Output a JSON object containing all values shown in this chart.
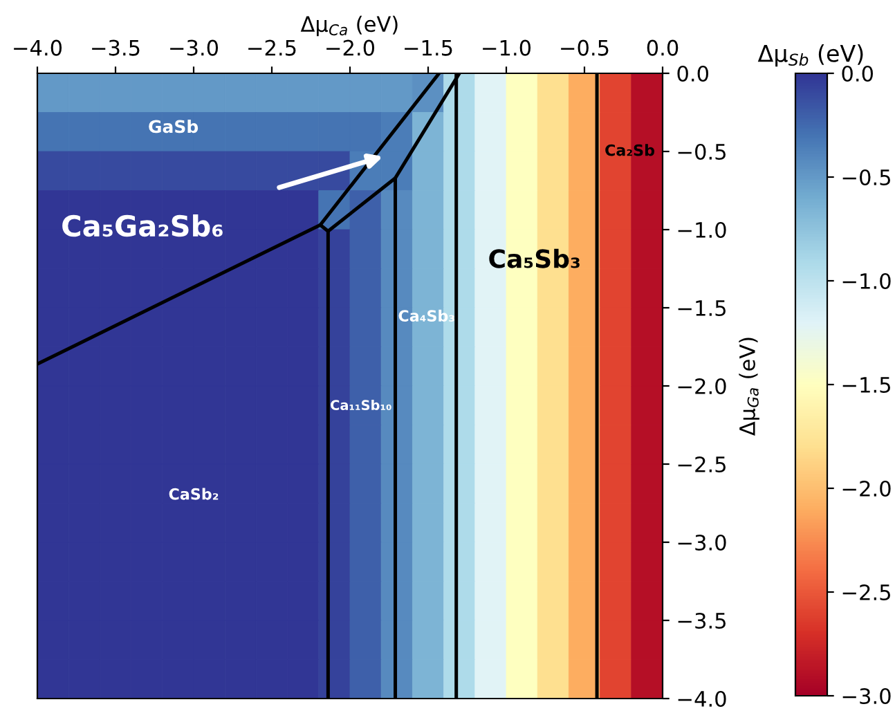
{
  "chart_data": {
    "type": "heatmap",
    "xlabel": "Δμ$_{Ca}$ (eV)",
    "ylabel": "Δμ$_{Ga}$ (eV)",
    "clabel": "Δμ$_{Sb}$ (eV)",
    "cells": [
      [
        -0.5,
        -0.5,
        -0.5,
        -0.5,
        -0.5,
        -0.5,
        -0.5,
        -0.5,
        -0.5,
        -0.5,
        -0.5,
        -0.5,
        -0.45,
        -0.92,
        -1.21,
        -1.5,
        -1.8,
        -2.1,
        -2.6,
        -2.9
      ],
      [
        -0.3,
        -0.3,
        -0.3,
        -0.3,
        -0.3,
        -0.3,
        -0.3,
        -0.3,
        -0.3,
        -0.3,
        -0.3,
        -0.35,
        -0.65,
        -0.92,
        -1.21,
        -1.5,
        -1.8,
        -2.1,
        -2.6,
        -2.9
      ],
      [
        -0.1,
        -0.1,
        -0.1,
        -0.1,
        -0.1,
        -0.1,
        -0.1,
        -0.1,
        -0.1,
        -0.1,
        -0.35,
        -0.35,
        -0.65,
        -0.92,
        -1.21,
        -1.5,
        -1.8,
        -2.1,
        -2.6,
        -2.9
      ],
      [
        0.0,
        0.0,
        0.0,
        0.0,
        0.0,
        0.0,
        0.0,
        0.0,
        0.0,
        -0.3,
        -0.2,
        -0.42,
        -0.65,
        -0.92,
        -1.21,
        -1.5,
        -1.8,
        -2.1,
        -2.6,
        -2.9
      ],
      [
        0.0,
        0.0,
        0.0,
        0.0,
        0.0,
        0.0,
        0.0,
        0.0,
        0.0,
        -0.06,
        -0.2,
        -0.42,
        -0.65,
        -0.92,
        -1.21,
        -1.5,
        -1.8,
        -2.1,
        -2.6,
        -2.9
      ],
      [
        0.0,
        0.0,
        0.0,
        0.0,
        0.0,
        0.0,
        0.0,
        0.0,
        0.0,
        -0.06,
        -0.2,
        -0.42,
        -0.65,
        -0.92,
        -1.21,
        -1.5,
        -1.8,
        -2.1,
        -2.6,
        -2.9
      ],
      [
        0.0,
        0.0,
        0.0,
        0.0,
        0.0,
        0.0,
        0.0,
        0.0,
        0.0,
        -0.06,
        -0.2,
        -0.42,
        -0.65,
        -0.92,
        -1.21,
        -1.5,
        -1.8,
        -2.1,
        -2.6,
        -2.9
      ],
      [
        0.0,
        0.0,
        0.0,
        0.0,
        0.0,
        0.0,
        0.0,
        0.0,
        0.0,
        -0.06,
        -0.2,
        -0.42,
        -0.65,
        -0.92,
        -1.21,
        -1.5,
        -1.8,
        -2.1,
        -2.6,
        -2.9
      ],
      [
        0.0,
        0.0,
        0.0,
        0.0,
        0.0,
        0.0,
        0.0,
        0.0,
        0.0,
        -0.06,
        -0.2,
        -0.42,
        -0.65,
        -0.92,
        -1.21,
        -1.5,
        -1.8,
        -2.1,
        -2.6,
        -2.9
      ],
      [
        0.0,
        0.0,
        0.0,
        0.0,
        0.0,
        0.0,
        0.0,
        0.0,
        0.0,
        -0.06,
        -0.2,
        -0.42,
        -0.65,
        -0.92,
        -1.21,
        -1.5,
        -1.8,
        -2.1,
        -2.6,
        -2.9
      ],
      [
        0.0,
        0.0,
        0.0,
        0.0,
        0.0,
        0.0,
        0.0,
        0.0,
        0.0,
        -0.06,
        -0.2,
        -0.42,
        -0.65,
        -0.92,
        -1.21,
        -1.5,
        -1.8,
        -2.1,
        -2.6,
        -2.9
      ],
      [
        0.0,
        0.0,
        0.0,
        0.0,
        0.0,
        0.0,
        0.0,
        0.0,
        0.0,
        -0.06,
        -0.2,
        -0.42,
        -0.65,
        -0.92,
        -1.21,
        -1.5,
        -1.8,
        -2.1,
        -2.6,
        -2.9
      ],
      [
        0.0,
        0.0,
        0.0,
        0.0,
        0.0,
        0.0,
        0.0,
        0.0,
        0.0,
        -0.06,
        -0.2,
        -0.42,
        -0.65,
        -0.92,
        -1.21,
        -1.5,
        -1.8,
        -2.1,
        -2.6,
        -2.9
      ],
      [
        0.0,
        0.0,
        0.0,
        0.0,
        0.0,
        0.0,
        0.0,
        0.0,
        0.0,
        -0.06,
        -0.2,
        -0.42,
        -0.65,
        -0.92,
        -1.21,
        -1.5,
        -1.8,
        -2.1,
        -2.6,
        -2.9
      ],
      [
        0.0,
        0.0,
        0.0,
        0.0,
        0.0,
        0.0,
        0.0,
        0.0,
        0.0,
        -0.06,
        -0.2,
        -0.42,
        -0.65,
        -0.92,
        -1.21,
        -1.5,
        -1.8,
        -2.1,
        -2.6,
        -2.9
      ],
      [
        0.0,
        0.0,
        0.0,
        0.0,
        0.0,
        0.0,
        0.0,
        0.0,
        0.0,
        -0.06,
        -0.2,
        -0.42,
        -0.65,
        -0.92,
        -1.21,
        -1.5,
        -1.8,
        -2.1,
        -2.6,
        -2.9
      ]
    ],
    "colors": [
      "#a50026",
      "#d73027",
      "#f46d43",
      "#fdae61",
      "#fee090",
      "#ffffbf",
      "#e0f3f8",
      "#abd9e9",
      "#74add1",
      "#4575b4",
      "#313695"
    ],
    "clim": [
      -3.0,
      0.0
    ],
    "cticks": [
      {
        "value": 0.0,
        "label": "0.0"
      },
      {
        "value": -0.5,
        "label": "−0.5"
      },
      {
        "value": -1.0,
        "label": "−1.0"
      },
      {
        "value": -1.5,
        "label": "−1.5"
      },
      {
        "value": -2.0,
        "label": "−2.0"
      },
      {
        "value": -2.5,
        "label": "−2.5"
      },
      {
        "value": -3.0,
        "label": "−3.0"
      }
    ],
    "xlim": [
      -4.0,
      0.0
    ],
    "ylim": [
      -4.0,
      0.0
    ],
    "xticks": [
      {
        "value": -4.0,
        "label": "−4.0"
      },
      {
        "value": -3.5,
        "label": "−3.5"
      },
      {
        "value": -3.0,
        "label": "−3.0"
      },
      {
        "value": -2.5,
        "label": "−2.5"
      },
      {
        "value": -2.0,
        "label": "−2.0"
      },
      {
        "value": -1.5,
        "label": "−1.5"
      },
      {
        "value": -1.0,
        "label": "−1.0"
      },
      {
        "value": -0.5,
        "label": "−0.5"
      },
      {
        "value": 0.0,
        "label": "0.0"
      }
    ],
    "yticks": [
      {
        "value": 0.0,
        "label": "0.0"
      },
      {
        "value": -0.5,
        "label": "−0.5"
      },
      {
        "value": -1.0,
        "label": "−1.0"
      },
      {
        "value": -1.5,
        "label": "−1.5"
      },
      {
        "value": -2.0,
        "label": "−2.0"
      },
      {
        "value": -2.5,
        "label": "−2.5"
      },
      {
        "value": -3.0,
        "label": "−3.0"
      },
      {
        "value": -3.5,
        "label": "−3.5"
      },
      {
        "value": -4.0,
        "label": "−4.0"
      }
    ],
    "series": [
      {
        "type": "line",
        "color": "#000000",
        "x": [
          -4.0,
          -2.19,
          -2.14
        ],
        "values": [
          -1.86,
          -0.97,
          -1.01
        ]
      },
      {
        "type": "line",
        "color": "#000000",
        "x": [
          -2.19,
          -1.43
        ],
        "values": [
          -0.97,
          0.0
        ]
      },
      {
        "type": "line",
        "color": "#000000",
        "x": [
          -2.14,
          -1.71,
          -1.3
        ],
        "values": [
          -1.01,
          -0.67,
          0.0
        ]
      },
      {
        "type": "line",
        "color": "#000000",
        "x": [
          -2.14,
          -2.14
        ],
        "values": [
          -1.01,
          -4.0
        ]
      },
      {
        "type": "line",
        "color": "#000000",
        "x": [
          -1.71,
          -1.71
        ],
        "values": [
          -0.67,
          -4.0
        ]
      },
      {
        "type": "line",
        "color": "#000000",
        "x": [
          -1.32,
          -1.32
        ],
        "values": [
          0.0,
          -4.0
        ]
      },
      {
        "type": "line",
        "color": "#000000",
        "x": [
          -0.42,
          -0.42
        ],
        "values": [
          0.0,
          -4.0
        ]
      }
    ],
    "annotations": [
      "GaSb",
      "Ca₅Ga₂Sb₆",
      "Ca₅Sb₃",
      "Ca₂Sb",
      "Ca₄Sb₃",
      "Ca₁₁Sb₁₀",
      "CaSb₂"
    ]
  }
}
